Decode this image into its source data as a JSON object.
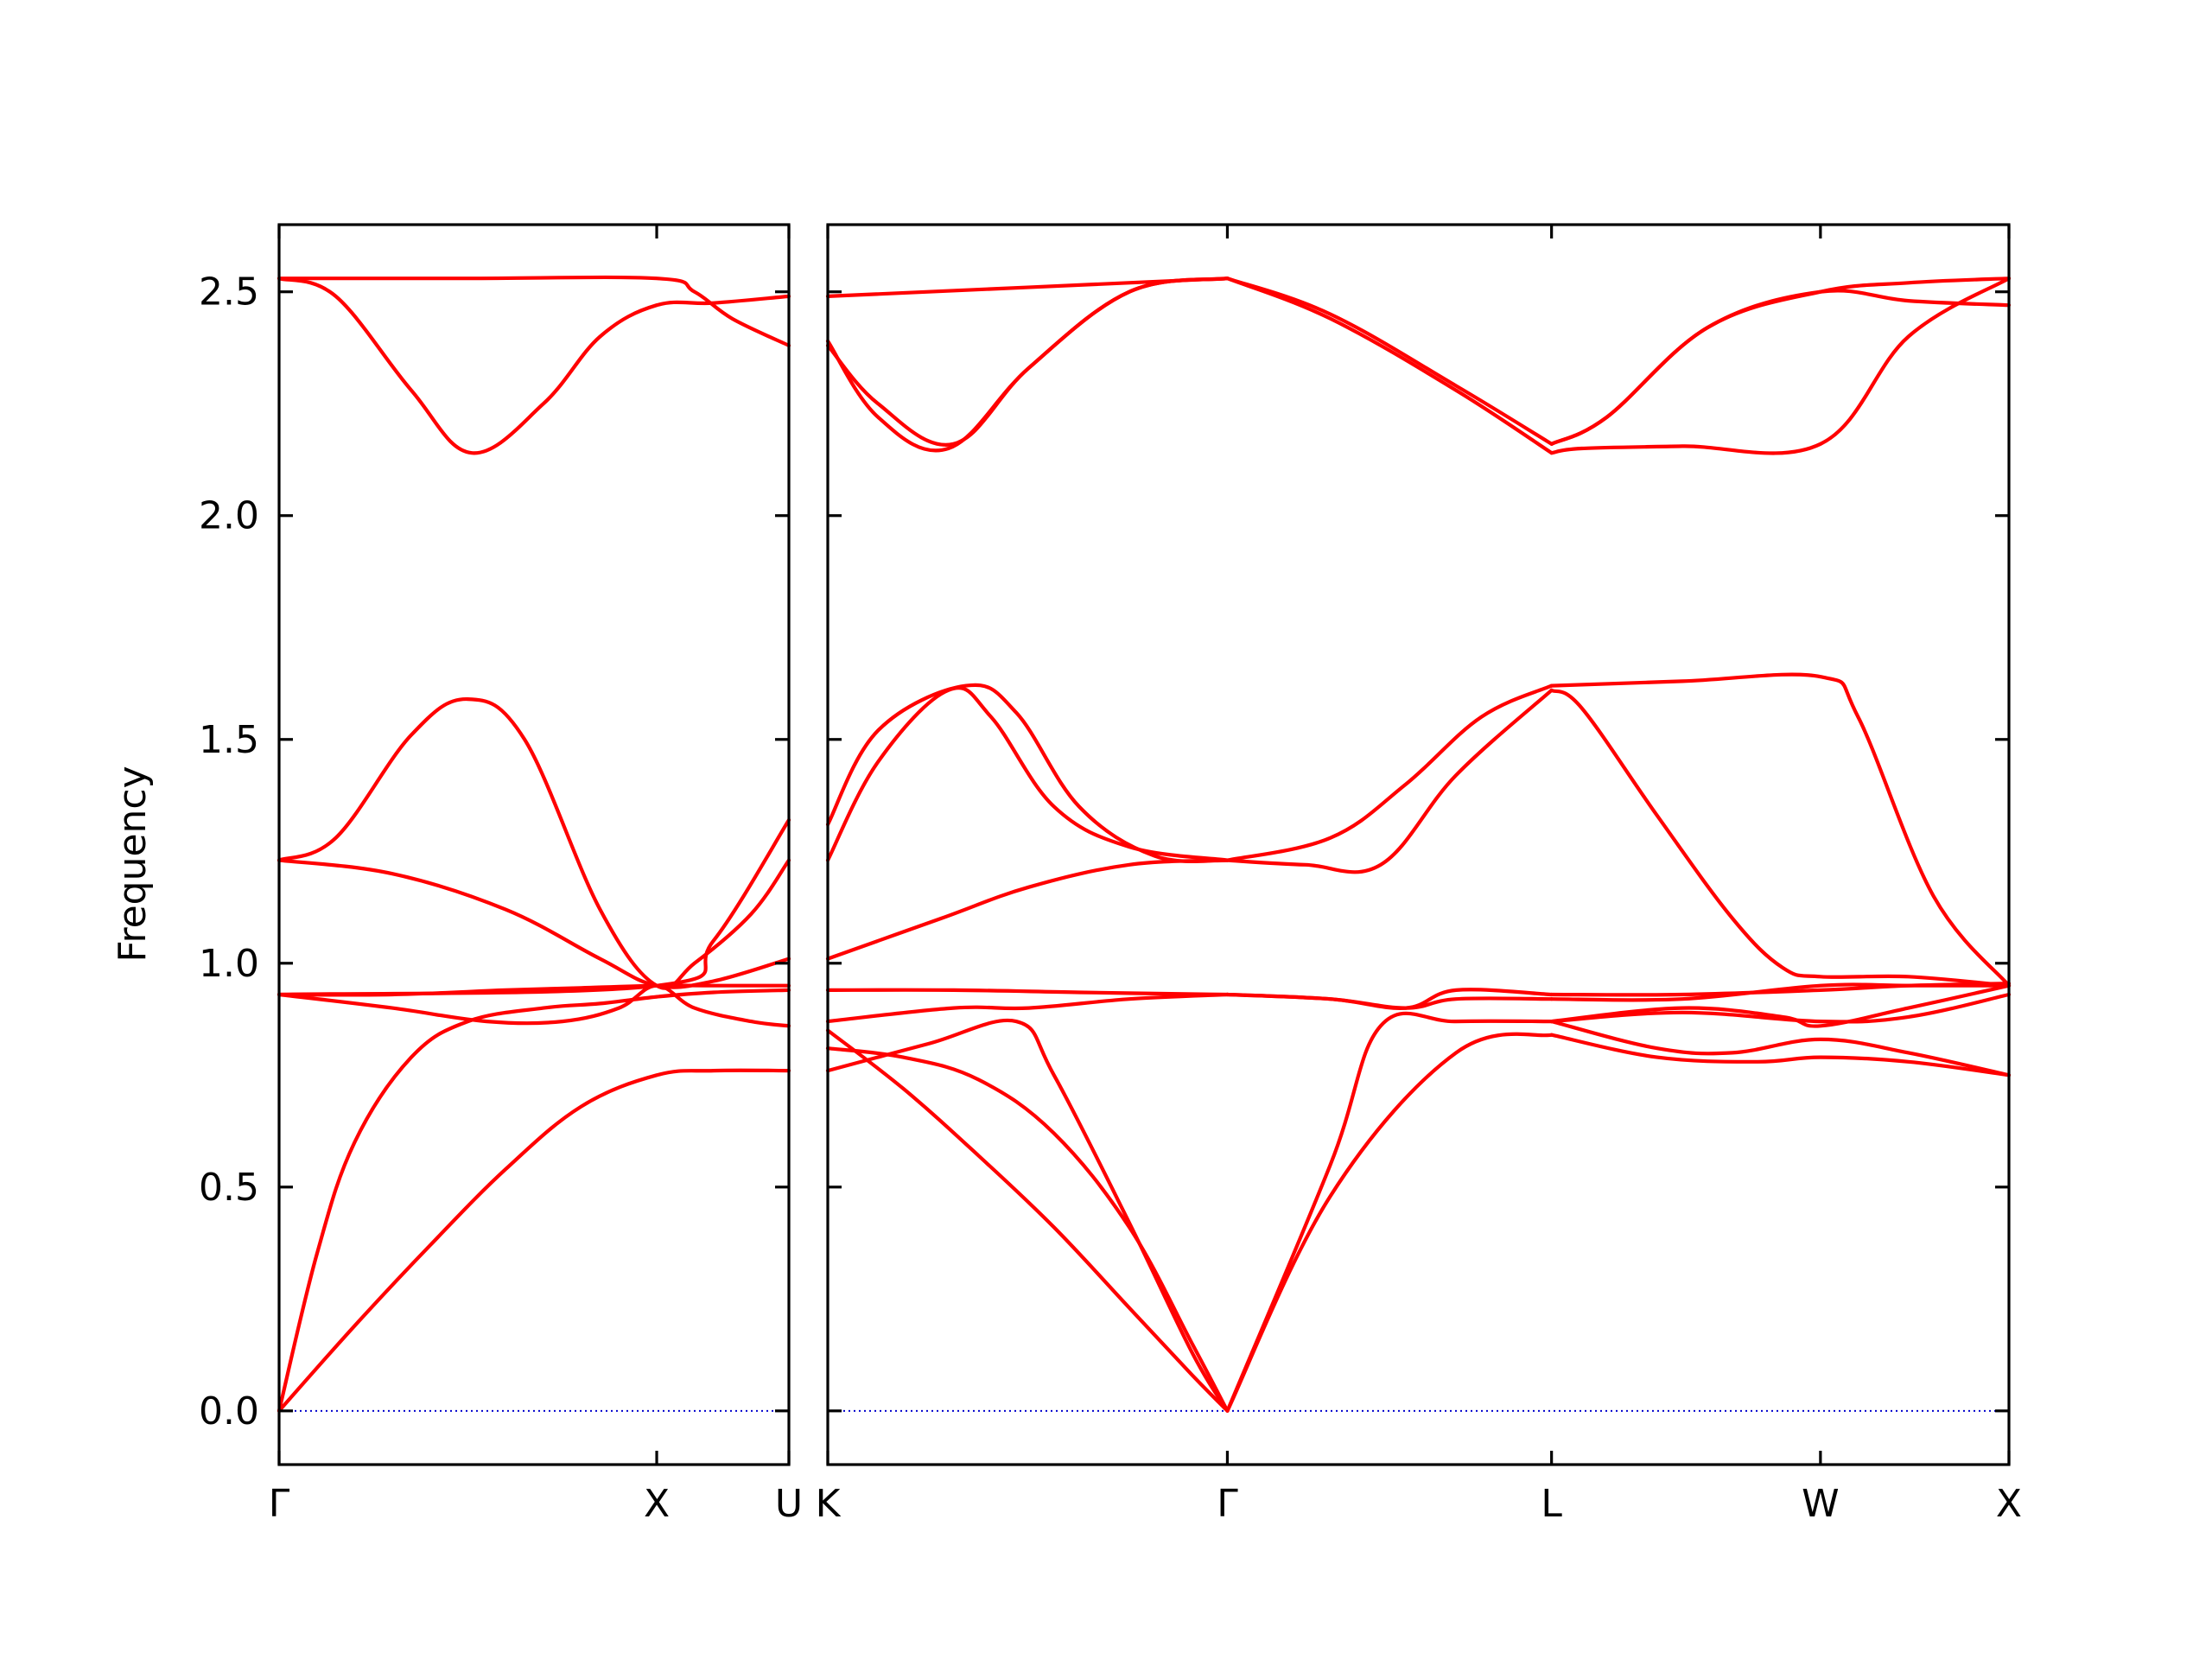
{
  "chart_data": {
    "type": "line",
    "title": "",
    "ylabel": "Frequency",
    "xlabel": "",
    "ylim": [
      -0.12,
      2.65
    ],
    "yticks": [
      "0.0",
      "0.5",
      "1.0",
      "1.5",
      "2.0",
      "2.5"
    ],
    "band_color": "#ff0000",
    "zero_line_color": "#0000cc",
    "panels": [
      {
        "name": "Γ-X-U",
        "xlim": [
          0,
          1.35
        ],
        "kpoints": [
          {
            "label": "Γ",
            "x": 0
          },
          {
            "label": "X",
            "x": 1.0
          },
          {
            "label": "U",
            "x": 1.35
          }
        ],
        "bands": [
          {
            "x": [
              0,
              0.2,
              0.4,
              0.6,
              0.8,
              1.0,
              1.15,
              1.35
            ],
            "y": [
              0,
              0.19,
              0.37,
              0.54,
              0.68,
              0.75,
              0.76,
              0.76
            ]
          },
          {
            "x": [
              0,
              0.1,
              0.2,
              0.35,
              0.5,
              0.7,
              0.85,
              1.0,
              1.15,
              1.35
            ],
            "y": [
              0,
              0.35,
              0.6,
              0.79,
              0.87,
              0.9,
              0.91,
              0.925,
              0.935,
              0.94
            ]
          },
          {
            "x": [
              0,
              0.3,
              0.6,
              0.8,
              1.0,
              1.15,
              1.35
            ],
            "y": [
              0.93,
              0.93,
              0.94,
              0.945,
              0.95,
              0.95,
              0.95
            ]
          },
          {
            "x": [
              0,
              0.3,
              0.55,
              0.75,
              0.9,
              1.0,
              1.1,
              1.25,
              1.35
            ],
            "y": [
              0.93,
              0.9,
              0.87,
              0.87,
              0.9,
              0.95,
              0.9,
              0.87,
              0.86
            ]
          },
          {
            "x": [
              0,
              0.3,
              0.6,
              0.85,
              1.0,
              1.15,
              1.35
            ],
            "y": [
              1.23,
              1.2,
              1.12,
              1.01,
              0.95,
              0.96,
              1.01
            ]
          },
          {
            "x": [
              0,
              0.15,
              0.35,
              0.5,
              0.65,
              0.85,
              1.0,
              1.1,
              1.25,
              1.35
            ],
            "y": [
              1.23,
              1.28,
              1.51,
              1.59,
              1.5,
              1.12,
              0.95,
              1.0,
              1.11,
              1.23
            ]
          },
          {
            "x": [
              0,
              1.0,
              1.15,
              1.35
            ],
            "y": [
              0.93,
              0.95,
              1.05,
              1.32
            ]
          },
          {
            "x": [
              0,
              0.15,
              0.35,
              0.51,
              0.7,
              0.85,
              1.0,
              1.15,
              1.35
            ],
            "y": [
              2.53,
              2.49,
              2.28,
              2.14,
              2.25,
              2.4,
              2.47,
              2.475,
              2.49
            ]
          },
          {
            "x": [
              0,
              0.5,
              1.0,
              1.1,
              1.2,
              1.35
            ],
            "y": [
              2.53,
              2.53,
              2.53,
              2.5,
              2.44,
              2.38
            ]
          }
        ]
      },
      {
        "name": "K-Γ-L-W-X",
        "xlim": [
          0,
          4.7
        ],
        "kpoints": [
          {
            "label": "K",
            "x": 0
          },
          {
            "label": "Γ",
            "x": 1.59
          },
          {
            "label": "L",
            "x": 2.88
          },
          {
            "label": "W",
            "x": 3.95
          },
          {
            "label": "X",
            "x": 4.7
          }
        ],
        "bands": [
          {
            "x": [
              0,
              0.3,
              0.6,
              0.9,
              1.2,
              1.45,
              1.59
            ],
            "y": [
              0.85,
              0.72,
              0.57,
              0.41,
              0.23,
              0.08,
              0
            ]
          },
          {
            "x": [
              0,
              0.3,
              0.6,
              0.9,
              1.2,
              1.45,
              1.59
            ],
            "y": [
              0.81,
              0.79,
              0.74,
              0.62,
              0.41,
              0.15,
              0
            ]
          },
          {
            "x": [
              0,
              0.4,
              0.75,
              0.9,
              1.2,
              1.45,
              1.59
            ],
            "y": [
              0.76,
              0.82,
              0.87,
              0.75,
              0.42,
              0.13,
              0
            ]
          },
          {
            "x": [
              0,
              0.5,
              0.8,
              1.2,
              1.59
            ],
            "y": [
              0.87,
              0.9,
              0.9,
              0.92,
              0.93
            ]
          },
          {
            "x": [
              0,
              0.5,
              1.0,
              1.59
            ],
            "y": [
              0.94,
              0.94,
              0.935,
              0.93
            ]
          },
          {
            "x": [
              0,
              0.45,
              0.8,
              1.2,
              1.59
            ],
            "y": [
              1.01,
              1.1,
              1.17,
              1.22,
              1.23
            ]
          },
          {
            "x": [
              0,
              0.2,
              0.48,
              0.65,
              0.9,
              1.2,
              1.59
            ],
            "y": [
              1.23,
              1.45,
              1.61,
              1.55,
              1.35,
              1.26,
              1.23
            ]
          },
          {
            "x": [
              0,
              0.2,
              0.55,
              0.75,
              1.0,
              1.3,
              1.59
            ],
            "y": [
              1.31,
              1.52,
              1.62,
              1.56,
              1.35,
              1.24,
              1.23
            ]
          },
          {
            "x": [
              0,
              1.59
            ],
            "y": [
              2.49,
              2.53
            ]
          },
          {
            "x": [
              0,
              0.2,
              0.48,
              0.8,
              1.2,
              1.59
            ],
            "y": [
              2.39,
              2.22,
              2.15,
              2.33,
              2.5,
              2.53
            ]
          },
          {
            "x": [
              0,
              0.2,
              0.5,
              0.8,
              1.2,
              1.59
            ],
            "y": [
              2.38,
              2.25,
              2.16,
              2.33,
              2.5,
              2.53
            ]
          },
          {
            "x": [
              1.59,
              2.0,
              2.5,
              2.88
            ],
            "y": [
              0,
              0.48,
              0.8,
              0.84
            ]
          },
          {
            "x": [
              1.59,
              2.0,
              2.2,
              2.5,
              2.88
            ],
            "y": [
              0,
              0.55,
              0.86,
              0.87,
              0.87
            ]
          },
          {
            "x": [
              1.59,
              2.0,
              2.3,
              2.5,
              2.88
            ],
            "y": [
              0.93,
              0.92,
              0.9,
              0.92,
              0.92
            ]
          },
          {
            "x": [
              1.59,
              2.0,
              2.3,
              2.5,
              2.88
            ],
            "y": [
              0.93,
              0.92,
              0.9,
              0.94,
              0.93
            ]
          },
          {
            "x": [
              1.59,
              1.9,
              2.2,
              2.5,
              2.88
            ],
            "y": [
              1.23,
              1.22,
              1.22,
              1.42,
              1.61
            ]
          },
          {
            "x": [
              1.59,
              2.0,
              2.3,
              2.6,
              2.88
            ],
            "y": [
              1.23,
              1.28,
              1.4,
              1.55,
              1.62
            ]
          },
          {
            "x": [
              1.59,
              2.0,
              2.5,
              2.88
            ],
            "y": [
              2.53,
              2.44,
              2.28,
              2.14
            ]
          },
          {
            "x": [
              1.59,
              2.0,
              2.5,
              2.88
            ],
            "y": [
              2.53,
              2.45,
              2.29,
              2.16
            ]
          },
          {
            "x": [
              2.88,
              3.3,
              3.7,
              3.95,
              4.3,
              4.7
            ],
            "y": [
              0.84,
              0.79,
              0.78,
              0.79,
              0.78,
              0.75
            ]
          },
          {
            "x": [
              2.88,
              3.3,
              3.6,
              3.95,
              4.3,
              4.7
            ],
            "y": [
              0.87,
              0.81,
              0.8,
              0.83,
              0.8,
              0.75
            ]
          },
          {
            "x": [
              2.88,
              3.4,
              3.95,
              4.3,
              4.7
            ],
            "y": [
              0.87,
              0.89,
              0.87,
              0.88,
              0.93
            ]
          },
          {
            "x": [
              2.88,
              3.4,
              3.8,
              3.95,
              4.3,
              4.7
            ],
            "y": [
              0.87,
              0.9,
              0.88,
              0.86,
              0.9,
              0.95
            ]
          },
          {
            "x": [
              2.88,
              3.4,
              3.95,
              4.3,
              4.7
            ],
            "y": [
              0.92,
              0.92,
              0.95,
              0.95,
              0.95
            ]
          },
          {
            "x": [
              2.88,
              3.4,
              3.95,
              4.3,
              4.7
            ],
            "y": [
              0.93,
              0.93,
              0.94,
              0.95,
              0.955
            ]
          },
          {
            "x": [
              2.88,
              3.0,
              3.3,
              3.6,
              3.8,
              3.95,
              4.3,
              4.7
            ],
            "y": [
              1.61,
              1.57,
              1.33,
              1.1,
              0.99,
              0.97,
              0.97,
              0.95
            ]
          },
          {
            "x": [
              2.88,
              3.4,
              3.95,
              4.1,
              4.4,
              4.7
            ],
            "y": [
              1.62,
              1.63,
              1.64,
              1.55,
              1.15,
              0.95
            ]
          },
          {
            "x": [
              2.88,
              3.0,
              3.4,
              3.95,
              4.3,
              4.7
            ],
            "y": [
              2.14,
              2.15,
              2.155,
              2.16,
              2.4,
              2.53
            ]
          },
          {
            "x": [
              2.88,
              3.1,
              3.5,
              3.95,
              4.3,
              4.7
            ],
            "y": [
              2.16,
              2.22,
              2.42,
              2.5,
              2.48,
              2.47
            ]
          },
          {
            "x": [
              2.88,
              3.1,
              3.5,
              3.95,
              4.3,
              4.7
            ],
            "y": [
              2.16,
              2.22,
              2.42,
              2.5,
              2.52,
              2.53
            ]
          }
        ]
      }
    ]
  }
}
